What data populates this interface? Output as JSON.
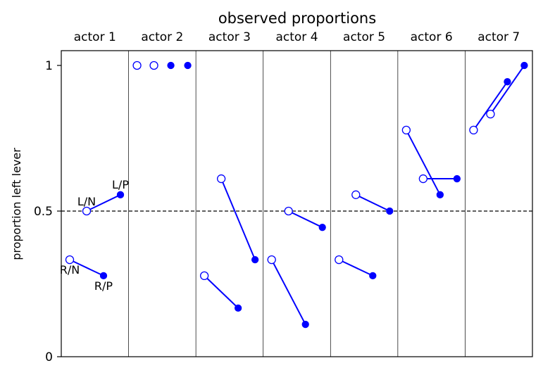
{
  "chart_data": {
    "type": "line",
    "title": "observed proportions",
    "ylabel": "proportion left lever",
    "xlabel": "",
    "ylim": [
      0,
      1.04
    ],
    "yticks": [
      {
        "value": 0,
        "label": "0"
      },
      {
        "value": 0.5,
        "label": "0.5"
      },
      {
        "value": 1,
        "label": "1"
      }
    ],
    "reference_line": {
      "value": 0.5,
      "style": "dashed"
    },
    "grid": false,
    "line_color": "#0000ff",
    "x": [
      1,
      2,
      3,
      4
    ],
    "actors": [
      {
        "label": "actor 1",
        "values": [
          0.333,
          0.5,
          0.278,
          0.556
        ]
      },
      {
        "label": "actor 2",
        "values": [
          1,
          1,
          1,
          1
        ]
      },
      {
        "label": "actor 3",
        "values": [
          0.278,
          0.611,
          0.167,
          0.333
        ]
      },
      {
        "label": "actor 4",
        "values": [
          0.333,
          0.5,
          0.111,
          0.444
        ]
      },
      {
        "label": "actor 5",
        "values": [
          0.333,
          0.556,
          0.278,
          0.5
        ]
      },
      {
        "label": "actor 6",
        "values": [
          0.778,
          0.611,
          0.556,
          0.611
        ]
      },
      {
        "label": "actor 7",
        "values": [
          0.778,
          0.833,
          0.944,
          1
        ]
      }
    ],
    "point_styles": [
      "open",
      "open",
      "filled",
      "filled"
    ],
    "connections": [
      [
        0,
        2
      ],
      [
        1,
        3
      ]
    ],
    "annotations": [
      {
        "text": "R/N",
        "actor": 0,
        "point": 0
      },
      {
        "text": "L/N",
        "actor": 0,
        "point": 1
      },
      {
        "text": "R/P",
        "actor": 0,
        "point": 2
      },
      {
        "text": "L/P",
        "actor": 0,
        "point": 3
      }
    ]
  }
}
